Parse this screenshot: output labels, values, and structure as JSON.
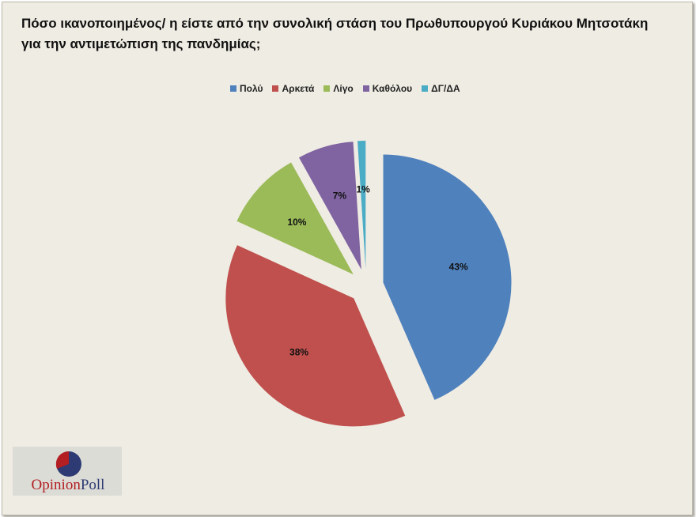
{
  "title": "Πόσο ικανοποιημένος/ η είστε από την συνολική στάση του Πρωθυπουργού Κυριάκου Μητσοτάκη για την αντιμετώπιση της πανδημίας;",
  "logo": {
    "part1": "Opinion",
    "part2": "Poll"
  },
  "chart_data": {
    "type": "pie",
    "exploded": true,
    "legend_position": "top",
    "categories": [
      "Πολύ",
      "Αρκετά",
      "Λίγο",
      "Καθόλου",
      "ΔΓ/ΔΑ"
    ],
    "values": [
      43,
      38,
      10,
      7,
      1
    ],
    "data_labels": [
      "43%",
      "38%",
      "10%",
      "7%",
      "1%"
    ],
    "colors": [
      "#4f81bd",
      "#c0504d",
      "#9bbb59",
      "#8064a2",
      "#4bacc6"
    ]
  }
}
